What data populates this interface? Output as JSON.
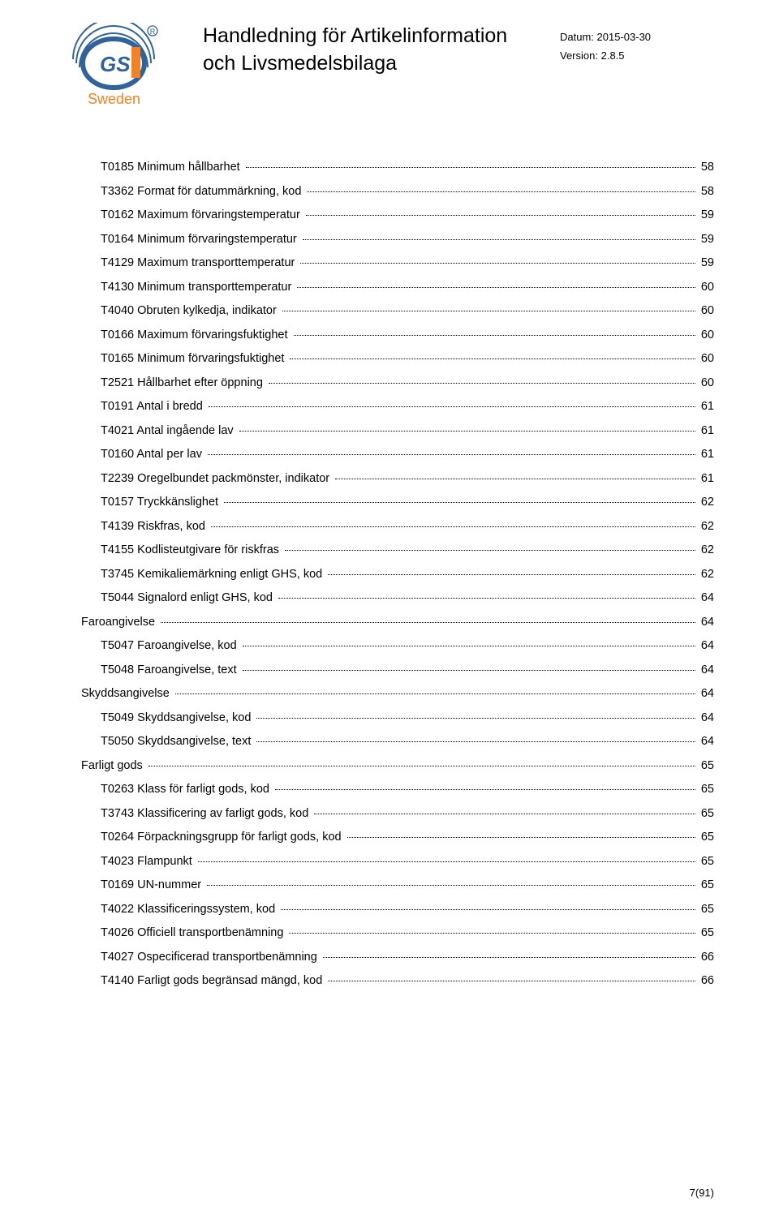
{
  "header": {
    "title_line1": "Handledning för Artikelinformation",
    "title_line2": "och Livsmedelsbilaga",
    "date_label": "Datum:",
    "date_value": "2015-03-30",
    "version_label": "Version:",
    "version_value": "2.8.5",
    "logo_text_gs1": "GS1",
    "logo_text_sweden": "Sweden",
    "logo_circle_color": "#30629c",
    "logo_accent_color": "#f58220"
  },
  "toc": [
    {
      "label": "T0185 Minimum hållbarhet",
      "page": "58",
      "section": false
    },
    {
      "label": "T3362 Format för datummärkning, kod",
      "page": "58",
      "section": false
    },
    {
      "label": "T0162 Maximum förvaringstemperatur",
      "page": "59",
      "section": false
    },
    {
      "label": "T0164 Minimum förvaringstemperatur",
      "page": "59",
      "section": false
    },
    {
      "label": "T4129 Maximum transporttemperatur",
      "page": "59",
      "section": false
    },
    {
      "label": "T4130 Minimum transporttemperatur",
      "page": "60",
      "section": false
    },
    {
      "label": "T4040 Obruten kylkedja, indikator",
      "page": "60",
      "section": false
    },
    {
      "label": "T0166 Maximum förvaringsfuktighet",
      "page": "60",
      "section": false
    },
    {
      "label": "T0165 Minimum förvaringsfuktighet",
      "page": "60",
      "section": false
    },
    {
      "label": "T2521 Hållbarhet efter öppning",
      "page": "60",
      "section": false
    },
    {
      "label": "T0191 Antal i bredd",
      "page": "61",
      "section": false
    },
    {
      "label": "T4021 Antal ingående lav",
      "page": "61",
      "section": false
    },
    {
      "label": "T0160 Antal per lav",
      "page": "61",
      "section": false
    },
    {
      "label": "T2239 Oregelbundet packmönster, indikator",
      "page": "61",
      "section": false
    },
    {
      "label": "T0157 Tryckkänslighet",
      "page": "62",
      "section": false
    },
    {
      "label": "T4139 Riskfras, kod",
      "page": "62",
      "section": false
    },
    {
      "label": "T4155 Kodlisteutgivare för riskfras",
      "page": "62",
      "section": false
    },
    {
      "label": "T3745 Kemikaliemärkning enligt GHS, kod",
      "page": "62",
      "section": false
    },
    {
      "label": "T5044 Signalord enligt GHS, kod",
      "page": "64",
      "section": false
    },
    {
      "label": "Faroangivelse",
      "page": "64",
      "section": true
    },
    {
      "label": "T5047 Faroangivelse, kod",
      "page": "64",
      "section": false
    },
    {
      "label": "T5048 Faroangivelse, text",
      "page": "64",
      "section": false
    },
    {
      "label": "Skyddsangivelse",
      "page": "64",
      "section": true
    },
    {
      "label": "T5049 Skyddsangivelse, kod",
      "page": "64",
      "section": false
    },
    {
      "label": "T5050 Skyddsangivelse, text",
      "page": "64",
      "section": false
    },
    {
      "label": "Farligt gods",
      "page": "65",
      "section": true
    },
    {
      "label": "T0263 Klass för farligt gods, kod",
      "page": "65",
      "section": false
    },
    {
      "label": "T3743 Klassificering av farligt gods, kod",
      "page": "65",
      "section": false
    },
    {
      "label": "T0264 Förpackningsgrupp för farligt gods, kod",
      "page": "65",
      "section": false
    },
    {
      "label": "T4023 Flampunkt",
      "page": "65",
      "section": false
    },
    {
      "label": "T0169 UN-nummer",
      "page": "65",
      "section": false
    },
    {
      "label": "T4022 Klassificeringssystem, kod",
      "page": "65",
      "section": false
    },
    {
      "label": "T4026 Officiell transportbenämning",
      "page": "65",
      "section": false
    },
    {
      "label": "T4027 Ospecificerad transportbenämning",
      "page": "66",
      "section": false
    },
    {
      "label": "T4140 Farligt gods begränsad mängd, kod",
      "page": "66",
      "section": false
    }
  ],
  "footer": {
    "page_num": "7",
    "total_pages": "91"
  },
  "style": {
    "text_color": "#000000",
    "background": "#ffffff",
    "title_fontsize": 25,
    "toc_fontsize": 14.5,
    "meta_fontsize": 13
  }
}
